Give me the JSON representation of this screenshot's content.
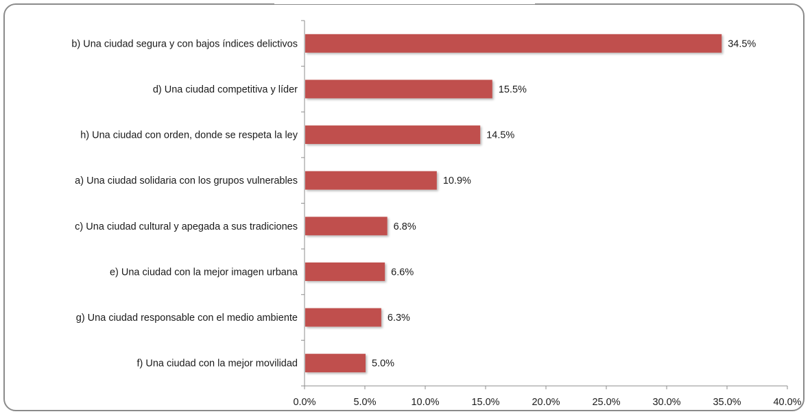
{
  "chart_data": {
    "type": "bar",
    "orientation": "horizontal",
    "title": "",
    "categories": [
      "b) Una ciudad segura y con bajos índices delictivos",
      "d) Una ciudad competitiva y líder",
      "h) Una ciudad con orden, donde se respeta la ley",
      "a) Una ciudad solidaria con los grupos vulnerables",
      "c) Una ciudad cultural y apegada a sus tradiciones",
      "e) Una ciudad con la mejor imagen urbana",
      "g) Una ciudad responsable con el medio ambiente",
      "f) Una ciudad con la mejor movilidad"
    ],
    "values": [
      34.5,
      15.5,
      14.5,
      10.9,
      6.8,
      6.6,
      6.3,
      5.0
    ],
    "value_labels": [
      "34.5%",
      "15.5%",
      "14.5%",
      "10.9%",
      "6.8%",
      "6.6%",
      "6.3%",
      "5.0%"
    ],
    "xlim": [
      0,
      40
    ],
    "x_ticks": [
      "0.0%",
      "5.0%",
      "10.0%",
      "15.0%",
      "20.0%",
      "25.0%",
      "30.0%",
      "35.0%",
      "40.0%"
    ],
    "grid": false,
    "legend": "none",
    "bar_color": "#c0504d"
  }
}
